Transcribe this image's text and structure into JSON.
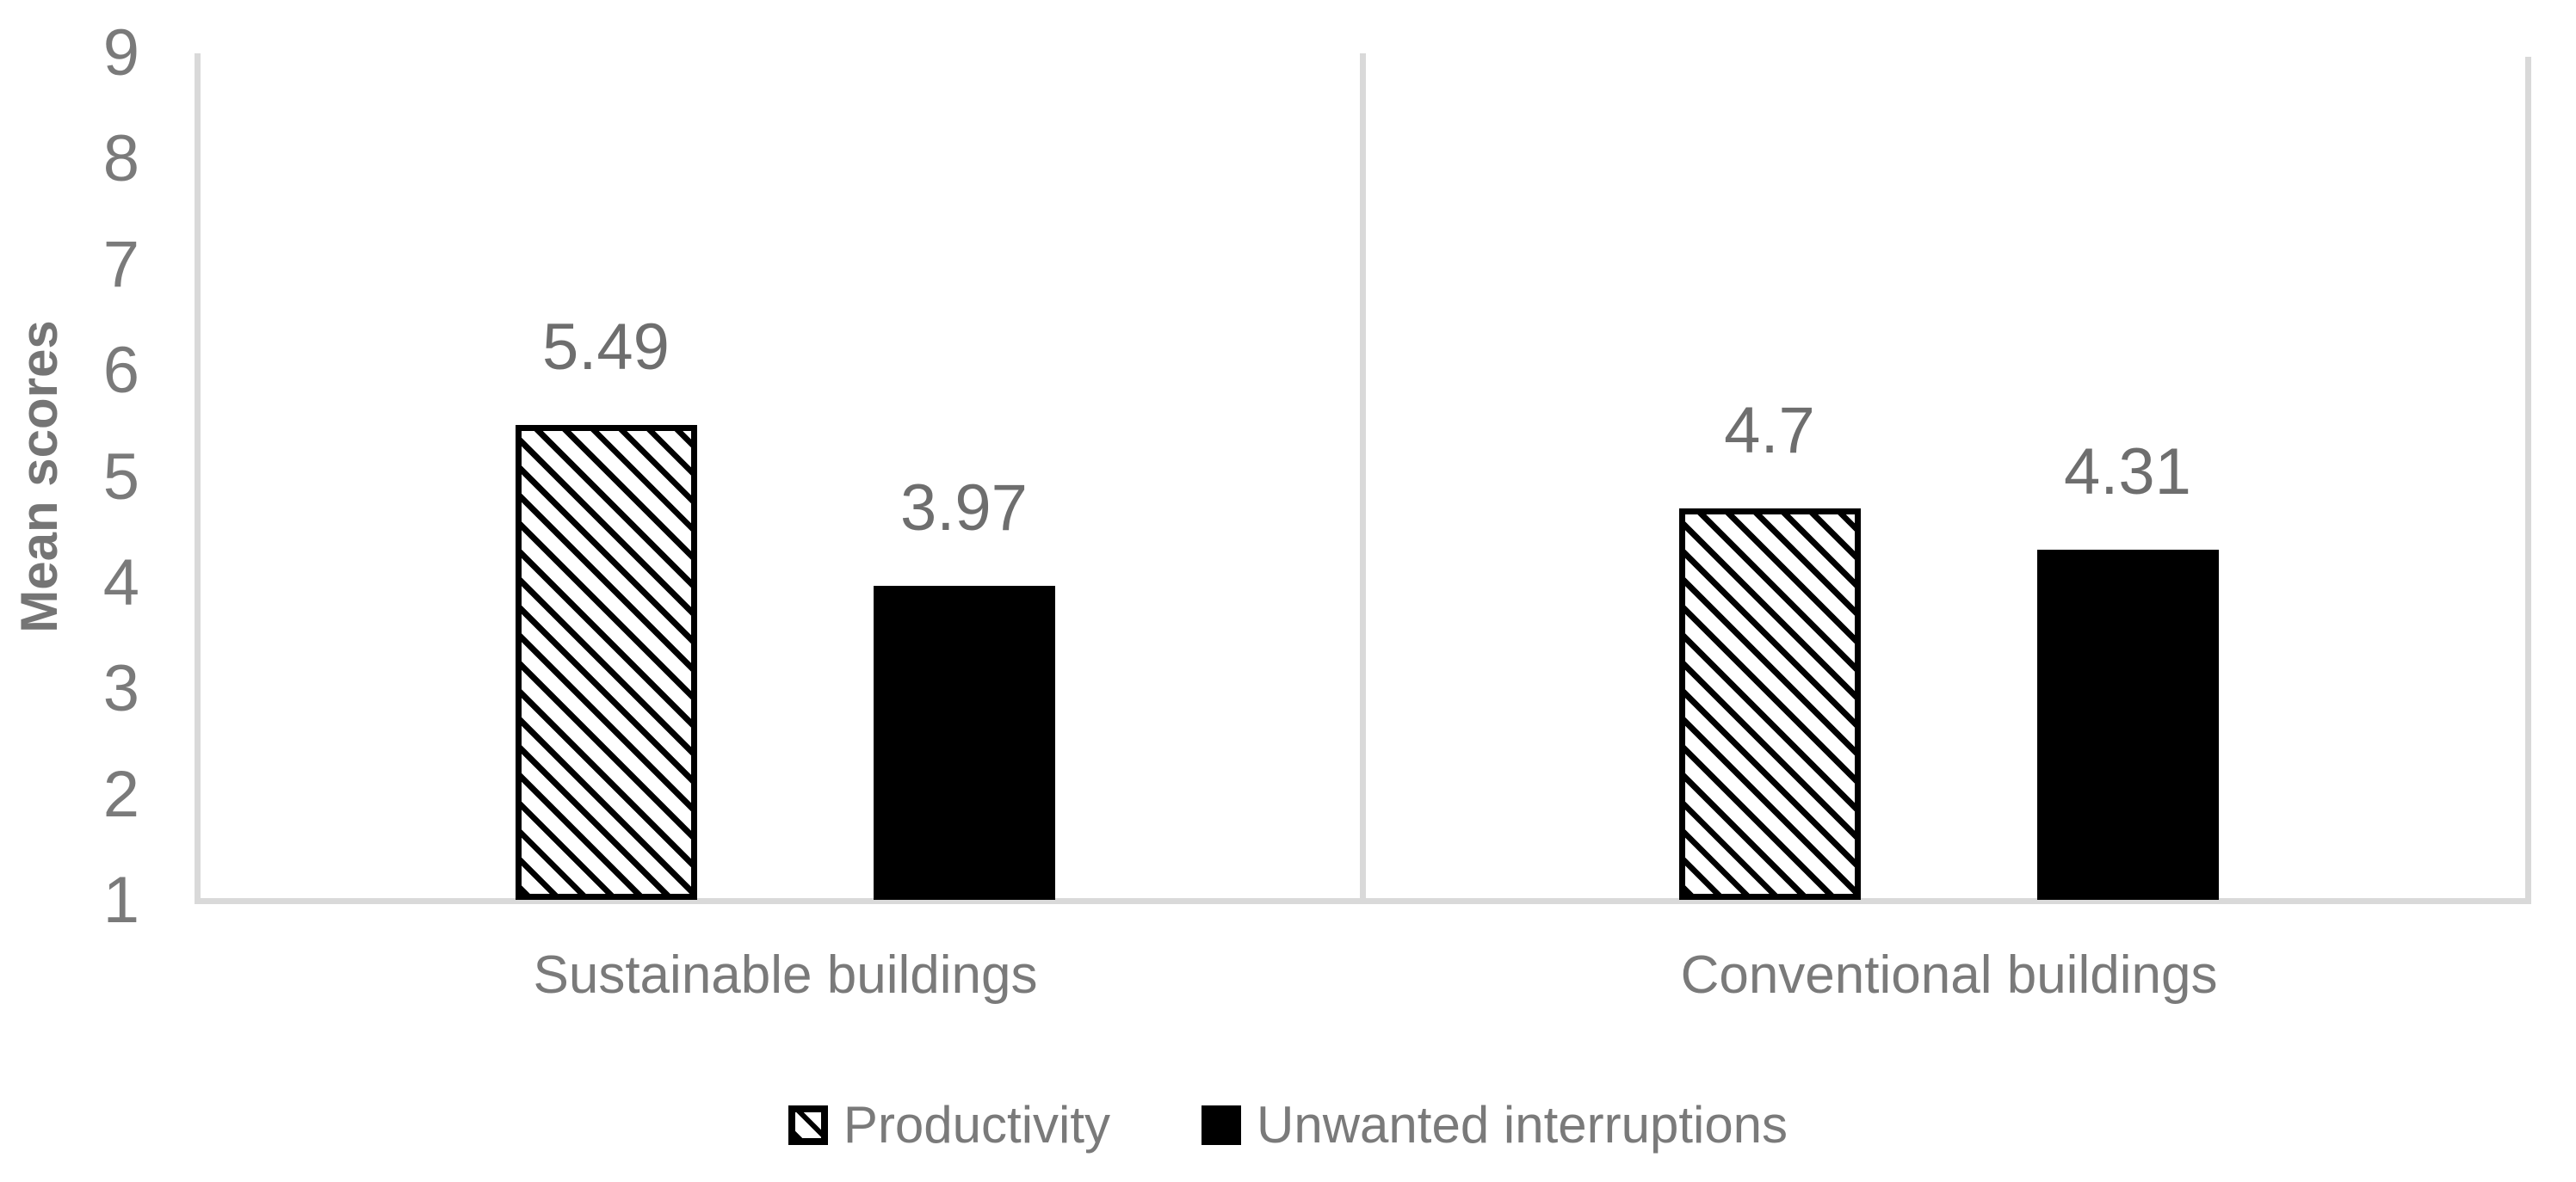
{
  "chart_data": {
    "type": "bar",
    "title": "",
    "xlabel": "",
    "ylabel": "Mean scores",
    "categories": [
      "Sustainable buildings",
      "Conventional buildings"
    ],
    "series": [
      {
        "name": "Productivity",
        "pattern": "diagonal-hatch",
        "values": [
          5.49,
          4.7
        ],
        "labels": [
          "5.49",
          "4.7"
        ]
      },
      {
        "name": "Unwanted interruptions",
        "pattern": "solid-black",
        "values": [
          3.97,
          4.31
        ],
        "labels": [
          "3.97",
          "4.31"
        ]
      }
    ],
    "ylim": [
      1,
      9
    ],
    "yticks": [
      "1",
      "2",
      "3",
      "4",
      "5",
      "6",
      "7",
      "8",
      "9"
    ],
    "grid": false,
    "legend_position": "bottom",
    "colors": {
      "text_gray": "#7a7a7a",
      "data_label_gray": "#6e6e6e",
      "axis_line_gray": "#d9d9d9",
      "bar_fill_black": "#000000",
      "bar_fill_white": "#ffffff"
    }
  }
}
